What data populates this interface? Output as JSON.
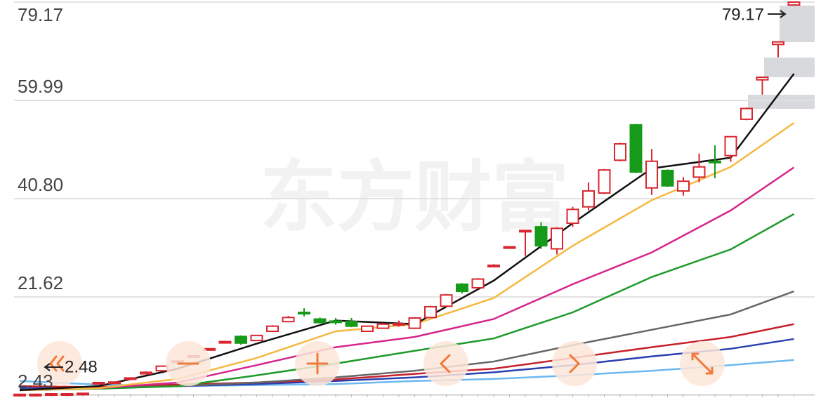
{
  "chart_data": {
    "type": "candlestick",
    "watermark": "东方财富",
    "ylim": [
      2.43,
      79.17
    ],
    "yticks": [
      2.43,
      21.62,
      {
        "value": 40.8,
        "label": "40.80"
      },
      59.99,
      79.17
    ],
    "grid": true,
    "up_color": "#d8262f",
    "down_color": "#169a19",
    "max_label": 79.17,
    "min_label": 2.48,
    "open": [
      2.5,
      2.6,
      2.6,
      2.6,
      2.7,
      4.8,
      4.9,
      5.6,
      6.6,
      7.2,
      9.0,
      10.0,
      11.4,
      12.8,
      13.9,
      13.1,
      14.9,
      16.8,
      18.6,
      17.3,
      16.9,
      16.8,
      14.9,
      15.5,
      16.3,
      15.5,
      17.6,
      19.8,
      24.1,
      23.4,
      27.6,
      31.2,
      34.4,
      35.3,
      31.0,
      36.0,
      39.2,
      41.9,
      48.3,
      55.2,
      42.9,
      46.3,
      42.3,
      45.0,
      48.1,
      49.2,
      56.3,
      64.0,
      70.9,
      78.6
    ],
    "close": [
      2.6,
      2.6,
      2.7,
      2.7,
      2.8,
      4.9,
      5.0,
      5.8,
      6.9,
      8.1,
      9.1,
      10.1,
      11.5,
      12.9,
      12.6,
      14.1,
      15.9,
      17.6,
      18.5,
      16.6,
      16.8,
      15.9,
      15.9,
      16.3,
      16.4,
      17.5,
      19.7,
      22.0,
      22.7,
      25.1,
      27.8,
      31.4,
      34.6,
      31.6,
      35.0,
      38.7,
      42.3,
      46.4,
      51.5,
      46.0,
      48.1,
      43.3,
      44.2,
      47.0,
      48.0,
      52.9,
      58.4,
      64.5,
      71.4,
      79.17
    ],
    "high": [
      2.7,
      2.7,
      2.8,
      2.8,
      2.9,
      5.0,
      5.1,
      5.9,
      7.1,
      8.2,
      9.3,
      10.2,
      11.6,
      13.0,
      14.1,
      14.2,
      16.1,
      17.9,
      19.4,
      17.6,
      17.5,
      17.5,
      16.0,
      16.5,
      17.0,
      17.7,
      19.9,
      22.2,
      24.3,
      25.3,
      28.0,
      31.5,
      34.7,
      36.2,
      35.2,
      39.2,
      44.0,
      46.6,
      51.7,
      55.4,
      50.5,
      46.5,
      45.0,
      49.6,
      51.2,
      53.0,
      58.6,
      64.5,
      71.4,
      79.17
    ],
    "low": [
      2.48,
      2.5,
      2.5,
      2.5,
      2.6,
      4.7,
      4.8,
      5.5,
      6.5,
      7.1,
      8.8,
      9.9,
      11.3,
      12.7,
      12.3,
      13.0,
      14.8,
      16.7,
      17.8,
      16.5,
      16.2,
      15.7,
      14.8,
      15.4,
      15.8,
      15.4,
      17.5,
      19.6,
      22.3,
      23.2,
      27.4,
      31.1,
      29.6,
      31.0,
      29.9,
      35.3,
      38.5,
      41.7,
      48.1,
      45.8,
      41.5,
      43.1,
      41.4,
      44.0,
      44.8,
      48.0,
      56.1,
      61.1,
      68.4,
      78.6
    ],
    "line_x": [
      0,
      5,
      10,
      15,
      20,
      25,
      30,
      35,
      40,
      45,
      49
    ],
    "lines": [
      {
        "color": "#6cb8ef",
        "values": [
          5.2,
          4.5,
          4.2,
          4.4,
          4.6,
          5.2,
          5.6,
          6.3,
          7.2,
          8.3,
          9.3
        ]
      },
      {
        "color": "#2b3fb0",
        "values": [
          3.8,
          3.9,
          4.2,
          4.6,
          5.2,
          5.9,
          6.9,
          8.3,
          10.0,
          11.5,
          13.4
        ]
      },
      {
        "color": "#c8202a",
        "values": [
          4.2,
          4.0,
          4.5,
          4.9,
          5.5,
          6.6,
          7.6,
          9.7,
          11.8,
          13.8,
          16.3
        ]
      },
      {
        "color": "#666666",
        "values": [
          3.5,
          3.8,
          4.2,
          4.9,
          5.9,
          7.2,
          9.0,
          12.2,
          15.2,
          18.2,
          22.7
        ]
      },
      {
        "color": "#1f9a2a",
        "values": [
          3.4,
          3.7,
          4.2,
          6.3,
          8.6,
          11.1,
          13.5,
          18.6,
          25.5,
          30.9,
          37.8
        ]
      },
      {
        "color": "#d6258c",
        "values": [
          3.4,
          3.8,
          4.9,
          8.3,
          11.8,
          13.8,
          17.3,
          24.1,
          30.3,
          38.5,
          46.9
        ]
      },
      {
        "color": "#f5b942",
        "values": [
          3.4,
          3.8,
          5.6,
          9.7,
          14.9,
          16.3,
          21.4,
          31.6,
          40.5,
          47.0,
          55.6
        ]
      },
      {
        "color": "#111111",
        "values": [
          3.4,
          4.2,
          7.6,
          12.5,
          17.0,
          16.3,
          24.8,
          36.0,
          46.7,
          48.8,
          65.2
        ]
      }
    ]
  }
}
